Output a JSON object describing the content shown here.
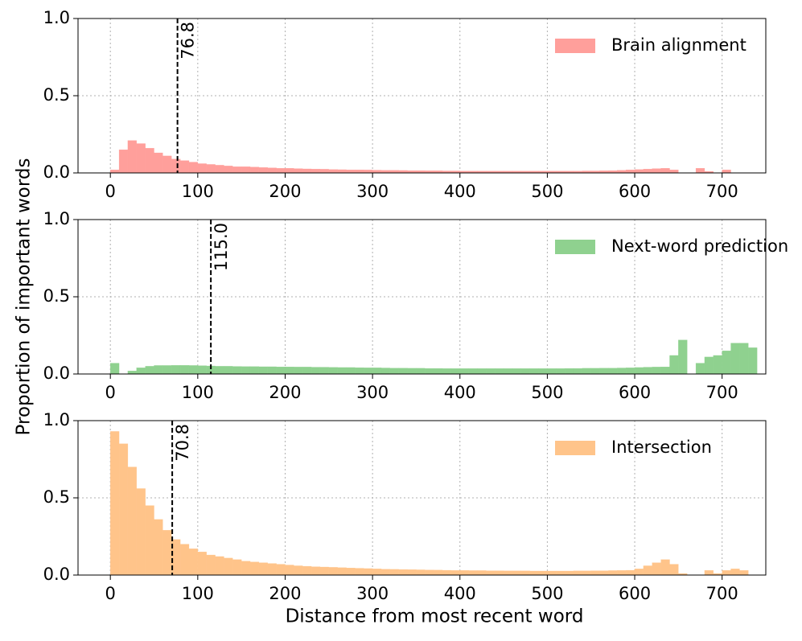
{
  "chart_data": [
    {
      "type": "histogram",
      "ylabel": "Proportion of important words",
      "bins": [
        0,
        10,
        20,
        30,
        40,
        50,
        60,
        70,
        80,
        90,
        100,
        110,
        120,
        130,
        140,
        150,
        160,
        170,
        180,
        190,
        200,
        210,
        220,
        230,
        240,
        250,
        260,
        270,
        280,
        290,
        300,
        310,
        320,
        330,
        340,
        350,
        360,
        370,
        380,
        390,
        400,
        410,
        420,
        430,
        440,
        450,
        460,
        470,
        480,
        490,
        500,
        510,
        520,
        530,
        540,
        550,
        560,
        570,
        580,
        590,
        600,
        610,
        620,
        630,
        640,
        650,
        660,
        670,
        680,
        690,
        700,
        710,
        720,
        730,
        740
      ],
      "series": [
        {
          "name": "Brain alignment",
          "color": "#ff9f9b",
          "values": [
            0.02,
            0.15,
            0.21,
            0.19,
            0.16,
            0.13,
            0.11,
            0.09,
            0.08,
            0.07,
            0.06,
            0.055,
            0.05,
            0.045,
            0.04,
            0.04,
            0.038,
            0.035,
            0.033,
            0.03,
            0.03,
            0.028,
            0.026,
            0.025,
            0.024,
            0.022,
            0.021,
            0.02,
            0.02,
            0.019,
            0.018,
            0.017,
            0.017,
            0.016,
            0.015,
            0.015,
            0.014,
            0.014,
            0.013,
            0.013,
            0.012,
            0.012,
            0.012,
            0.012,
            0.012,
            0.012,
            0.012,
            0.012,
            0.012,
            0.012,
            0.012,
            0.012,
            0.012,
            0.012,
            0.013,
            0.013,
            0.014,
            0.015,
            0.017,
            0.02,
            0.022,
            0.025,
            0.028,
            0.03,
            0.02,
            0,
            0,
            0.03,
            0.01,
            0,
            0.02,
            0,
            0,
            0
          ]
        }
      ],
      "vline": 76.8,
      "xlim": [
        -37,
        750
      ],
      "xticks": [
        0,
        100,
        200,
        300,
        400,
        500,
        600,
        700
      ],
      "ylim": [
        0,
        1
      ],
      "yticks": [
        {
          "value": 0,
          "label": "0.0"
        },
        {
          "value": 0.5,
          "label": "0.5"
        },
        {
          "value": 1,
          "label": "1.0"
        }
      ],
      "grid": true
    },
    {
      "type": "histogram",
      "bins": [
        0,
        10,
        20,
        30,
        40,
        50,
        60,
        70,
        80,
        90,
        100,
        110,
        120,
        130,
        140,
        150,
        160,
        170,
        180,
        190,
        200,
        210,
        220,
        230,
        240,
        250,
        260,
        270,
        280,
        290,
        300,
        310,
        320,
        330,
        340,
        350,
        360,
        370,
        380,
        390,
        400,
        410,
        420,
        430,
        440,
        450,
        460,
        470,
        480,
        490,
        500,
        510,
        520,
        530,
        540,
        550,
        560,
        570,
        580,
        590,
        600,
        610,
        620,
        630,
        640,
        650,
        660,
        670,
        680,
        690,
        700,
        710,
        720,
        730,
        740
      ],
      "series": [
        {
          "name": "Next-word prediction",
          "color": "#8fd18f",
          "values": [
            0.07,
            0,
            0.02,
            0.04,
            0.05,
            0.055,
            0.055,
            0.056,
            0.056,
            0.055,
            0.054,
            0.052,
            0.05,
            0.05,
            0.049,
            0.048,
            0.048,
            0.047,
            0.047,
            0.046,
            0.046,
            0.045,
            0.045,
            0.044,
            0.044,
            0.043,
            0.042,
            0.042,
            0.041,
            0.04,
            0.04,
            0.039,
            0.038,
            0.038,
            0.037,
            0.037,
            0.036,
            0.036,
            0.035,
            0.035,
            0.035,
            0.035,
            0.035,
            0.035,
            0.035,
            0.035,
            0.035,
            0.035,
            0.035,
            0.035,
            0.035,
            0.035,
            0.036,
            0.036,
            0.037,
            0.037,
            0.038,
            0.038,
            0.039,
            0.04,
            0.042,
            0.044,
            0.045,
            0.046,
            0.12,
            0.22,
            0,
            0.07,
            0.11,
            0.12,
            0.15,
            0.2,
            0.2,
            0.17
          ]
        }
      ],
      "vline": {
        "value": 115,
        "label": "115.0"
      },
      "xlim": [
        -37,
        750
      ],
      "xticks": [
        0,
        100,
        200,
        300,
        400,
        500,
        600,
        700
      ],
      "ylim": [
        0,
        1
      ],
      "yticks": [
        {
          "value": 0,
          "label": "0.0"
        },
        {
          "value": 0.5,
          "label": "0.5"
        },
        {
          "value": 1,
          "label": "1.0"
        }
      ],
      "grid": true
    },
    {
      "type": "histogram",
      "xlabel": "Distance from most recent word",
      "bins": [
        0,
        10,
        20,
        30,
        40,
        50,
        60,
        70,
        80,
        90,
        100,
        110,
        120,
        130,
        140,
        150,
        160,
        170,
        180,
        190,
        200,
        210,
        220,
        230,
        240,
        250,
        260,
        270,
        280,
        290,
        300,
        310,
        320,
        330,
        340,
        350,
        360,
        370,
        380,
        390,
        400,
        410,
        420,
        430,
        440,
        450,
        460,
        470,
        480,
        490,
        500,
        510,
        520,
        530,
        540,
        550,
        560,
        570,
        580,
        590,
        600,
        610,
        620,
        630,
        640,
        650,
        660,
        670,
        680,
        690,
        700,
        710,
        720,
        730,
        740
      ],
      "series": [
        {
          "name": "Intersection",
          "color": "#ffc48a",
          "values": [
            0.93,
            0.85,
            0.7,
            0.56,
            0.45,
            0.36,
            0.29,
            0.23,
            0.2,
            0.17,
            0.15,
            0.13,
            0.12,
            0.11,
            0.1,
            0.09,
            0.085,
            0.08,
            0.075,
            0.07,
            0.065,
            0.06,
            0.057,
            0.054,
            0.052,
            0.05,
            0.048,
            0.046,
            0.044,
            0.042,
            0.04,
            0.038,
            0.037,
            0.036,
            0.035,
            0.034,
            0.033,
            0.032,
            0.031,
            0.03,
            0.03,
            0.029,
            0.029,
            0.028,
            0.028,
            0.027,
            0.027,
            0.027,
            0.026,
            0.026,
            0.026,
            0.026,
            0.026,
            0.027,
            0.027,
            0.028,
            0.028,
            0.029,
            0.03,
            0.031,
            0.04,
            0.06,
            0.08,
            0.1,
            0.07,
            0.01,
            0,
            0,
            0.03,
            0.01,
            0.03,
            0.04,
            0.03,
            0
          ]
        }
      ],
      "vline": 70.8,
      "xlim": [
        -37,
        750
      ],
      "xticks": [
        0,
        100,
        200,
        300,
        400,
        500,
        600,
        700
      ],
      "ylim": [
        0,
        1
      ],
      "yticks": [
        {
          "value": 0,
          "label": "0.0"
        },
        {
          "value": 0.5,
          "label": "0.5"
        },
        {
          "value": 1,
          "label": "1.0"
        }
      ],
      "grid": true
    }
  ]
}
